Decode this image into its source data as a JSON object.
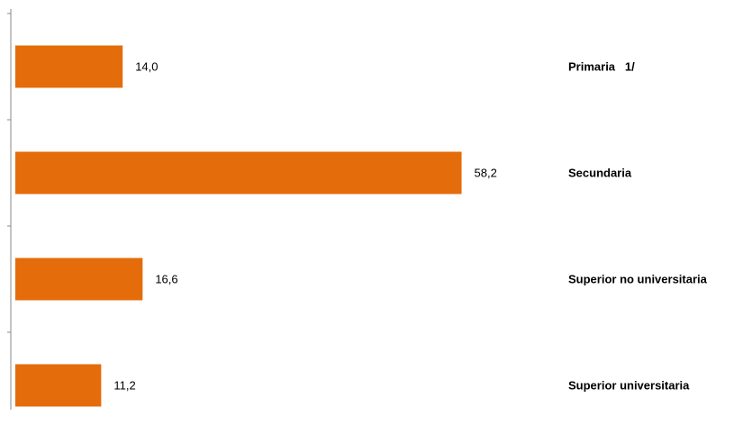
{
  "chart_data": {
    "type": "bar",
    "orientation": "horizontal",
    "categories": [
      "Primaria   1/",
      "Secundaria",
      "Superior no universitaria",
      "Superior universitaria"
    ],
    "values": [
      14.0,
      58.2,
      16.6,
      11.2
    ],
    "value_labels": [
      "14,0",
      "58,2",
      "16,6",
      "11,2"
    ],
    "color": "#e46c0a",
    "xlim": [
      0,
      70
    ]
  }
}
